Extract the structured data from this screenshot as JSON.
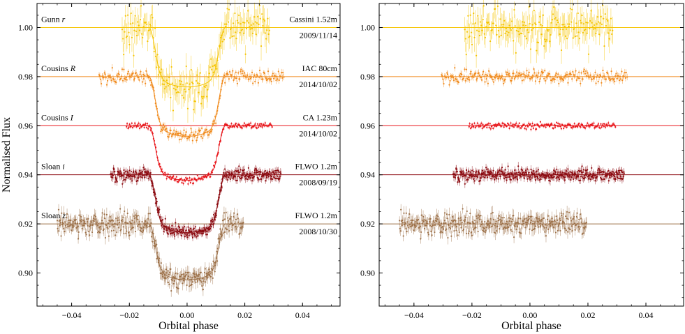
{
  "chart_data": [
    {
      "type": "scatter",
      "panel": "left",
      "xlabel": "Orbital phase",
      "ylabel": "Normalised Flux",
      "xlim": [
        -0.052,
        0.053
      ],
      "ylim": [
        0.8865,
        1.0098
      ],
      "xticks": [
        -0.04,
        -0.02,
        0.0,
        0.02,
        0.04
      ],
      "xtick_labels": [
        "−0.04",
        "−0.02",
        "0.00",
        "0.02",
        "0.04"
      ],
      "yticks": [
        0.9,
        0.92,
        0.94,
        0.96,
        0.98,
        1.0
      ],
      "ytick_labels": [
        "0.90",
        "0.92",
        "0.94",
        "0.96",
        "0.98",
        "1.00"
      ],
      "grid": false,
      "series": [
        {
          "name": "Gunn r",
          "name_plain": "Gunn ",
          "name_italic": "r",
          "telescope": "Cassini 1.52m",
          "date": "2009/11/14",
          "color": "#f5c400",
          "offset": 1.0,
          "x_range": [
            -0.0225,
            0.0285
          ],
          "depth": 0.0242,
          "n_points": 180,
          "scatter": 0.0042
        },
        {
          "name": "Cousins R",
          "name_plain": "Cousins ",
          "name_italic": "R",
          "telescope": "IAC 80cm",
          "date": "2014/10/02",
          "color": "#f08a1c",
          "offset": 0.98,
          "x_range": [
            -0.0305,
            0.0335
          ],
          "depth": 0.0243,
          "n_points": 240,
          "scatter": 0.0011
        },
        {
          "name": "Cousins I",
          "name_plain": "Cousins ",
          "name_italic": "I",
          "telescope": "CA 1.23m",
          "date": "2014/10/02",
          "color": "#e8161b",
          "offset": 0.96,
          "x_range": [
            -0.021,
            0.0295
          ],
          "depth": 0.0222,
          "n_points": 190,
          "scatter": 0.0006
        },
        {
          "name": "Sloan i",
          "name_plain": "Sloan ",
          "name_italic": "i",
          "telescope": "FLWO 1.2m",
          "date": "2008/09/19",
          "color": "#8b0a10",
          "offset": 0.94,
          "x_range": [
            -0.0265,
            0.0325
          ],
          "depth": 0.0235,
          "n_points": 420,
          "scatter": 0.0013
        },
        {
          "name": "Sloan z",
          "name_plain": "Sloan ",
          "name_italic": "z",
          "telescope": "FLWO 1.2m",
          "date": "2008/10/30",
          "color": "#9c7048",
          "offset": 0.92,
          "x_range": [
            -0.045,
            0.0195
          ],
          "depth": 0.0228,
          "n_points": 380,
          "scatter": 0.0021
        }
      ],
      "transit": {
        "t14": 0.0264,
        "t12": 0.0045
      }
    },
    {
      "type": "scatter",
      "panel": "right",
      "title": "",
      "xlabel": "Orbital phase",
      "ylabel": "",
      "xlim": [
        -0.052,
        0.053
      ],
      "ylim": [
        0.8865,
        1.0098
      ],
      "xticks": [
        -0.04,
        -0.02,
        0.0,
        0.02,
        0.04
      ],
      "xtick_labels": [
        "−0.04",
        "−0.02",
        "0.00",
        "0.02",
        "0.04"
      ],
      "yticks": [
        0.9,
        0.92,
        0.94,
        0.96,
        0.98,
        1.0
      ],
      "ytick_labels": [
        "0.90",
        "0.92",
        "0.94",
        "0.96",
        "0.98",
        "1.00"
      ],
      "grid": false,
      "series": [
        {
          "name": "Gunn r residuals",
          "color": "#f5c400",
          "offset": 1.0,
          "x_range": [
            -0.0225,
            0.0285
          ],
          "n_points": 180,
          "scatter": 0.0042
        },
        {
          "name": "Cousins R residuals",
          "color": "#f08a1c",
          "offset": 0.98,
          "x_range": [
            -0.0305,
            0.0335
          ],
          "n_points": 240,
          "scatter": 0.0011
        },
        {
          "name": "Cousins I residuals",
          "color": "#e8161b",
          "offset": 0.96,
          "x_range": [
            -0.021,
            0.0295
          ],
          "n_points": 190,
          "scatter": 0.0006
        },
        {
          "name": "Sloan i residuals",
          "color": "#8b0a10",
          "offset": 0.94,
          "x_range": [
            -0.0265,
            0.0325
          ],
          "n_points": 420,
          "scatter": 0.0013
        },
        {
          "name": "Sloan z residuals",
          "color": "#9c7048",
          "offset": 0.92,
          "x_range": [
            -0.045,
            0.0195
          ],
          "n_points": 380,
          "scatter": 0.0021
        }
      ]
    }
  ]
}
